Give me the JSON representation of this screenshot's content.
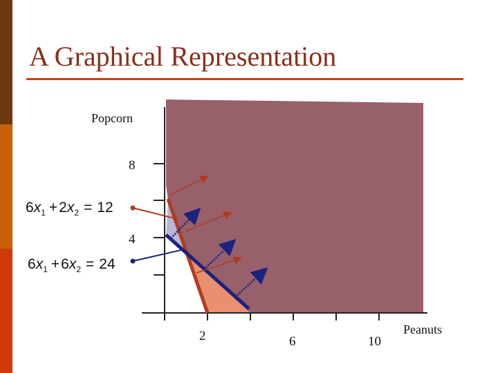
{
  "title": "A Graphical Representation",
  "axes": {
    "y_label": "Popcorn",
    "x_label": "Peanuts",
    "y_ticks": [
      "8",
      "4"
    ],
    "x_ticks": [
      "2",
      "6",
      "10"
    ]
  },
  "equations": [
    {
      "coef1": "6",
      "var1": "x",
      "sub1": "1",
      "op": "+",
      "coef2": "2",
      "var2": "x",
      "sub2": "2",
      "rel": "=",
      "rhs": "12",
      "color": "#b23a1e"
    },
    {
      "coef1": "6",
      "var1": "x",
      "sub1": "1",
      "op": "+",
      "coef2": "6",
      "var2": "x",
      "sub2": "2",
      "rel": "=",
      "rhs": "24",
      "color": "#1a237e"
    }
  ],
  "colors": {
    "feasible_region": "#97606b",
    "region_orange": "#e89070",
    "region_blue": "#b9b6d6",
    "constraint_red": "#b23a1e",
    "constraint_blue": "#1a237e"
  }
}
